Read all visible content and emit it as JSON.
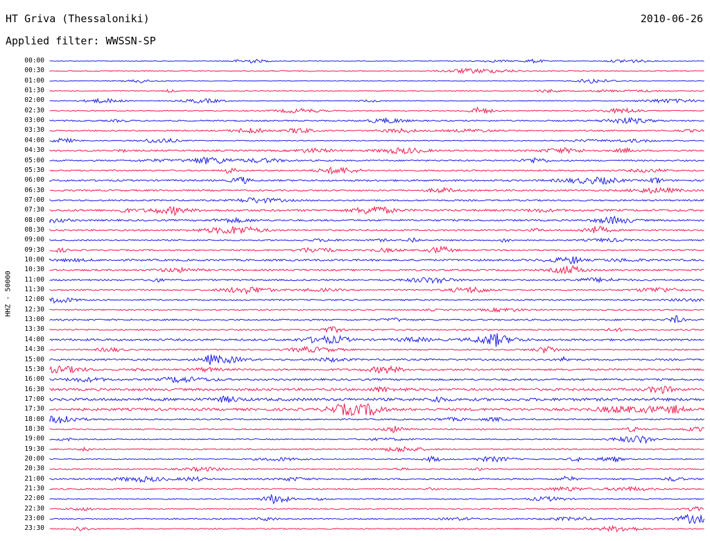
{
  "station": "HT Griva (Thessaloniki)",
  "date": "2010-06-26",
  "filter": "Applied filter: WWSSN-SP",
  "channel": "HHZ - 50000",
  "colors": {
    "even_trace": "#1a1ae6",
    "odd_trace": "#f0184f"
  },
  "chart_data": {
    "type": "line",
    "title": "HT Griva (Thessaloniki)",
    "ylabel": "HHZ - 50000",
    "xlabel": "",
    "tick_labels": [
      "00:00",
      "00:30",
      "01:00",
      "01:30",
      "02:00",
      "02:30",
      "03:00",
      "03:30",
      "04:00",
      "04:30",
      "05:00",
      "05:30",
      "06:00",
      "06:30",
      "07:00",
      "07:30",
      "08:00",
      "08:30",
      "09:00",
      "09:30",
      "10:00",
      "10:30",
      "11:00",
      "11:30",
      "12:00",
      "12:30",
      "13:00",
      "13:30",
      "14:00",
      "14:30",
      "15:00",
      "15:30",
      "16:00",
      "16:30",
      "17:00",
      "17:30",
      "18:00",
      "18:30",
      "19:00",
      "19:30",
      "20:00",
      "20:30",
      "21:00",
      "21:30",
      "22:00",
      "22:30",
      "23:00",
      "23:30"
    ],
    "series": [
      {
        "values": [
          0.4
        ]
      },
      {
        "values": [
          0.6
        ]
      },
      {
        "values": [
          0.4
        ]
      },
      {
        "values": [
          0.5
        ]
      },
      {
        "values": [
          0.5
        ]
      },
      {
        "values": [
          0.6
        ]
      },
      {
        "values": [
          0.9
        ]
      },
      {
        "values": [
          0.8
        ]
      },
      {
        "values": [
          0.6
        ]
      },
      {
        "values": [
          1.0
        ]
      },
      {
        "values": [
          0.9
        ]
      },
      {
        "values": [
          0.9
        ]
      },
      {
        "values": [
          1.1
        ]
      },
      {
        "values": [
          1.0
        ]
      },
      {
        "values": [
          1.0
        ]
      },
      {
        "values": [
          1.3
        ]
      },
      {
        "values": [
          1.1
        ]
      },
      {
        "values": [
          1.0
        ]
      },
      {
        "values": [
          0.8
        ]
      },
      {
        "values": [
          0.9
        ]
      },
      {
        "values": [
          1.2
        ]
      },
      {
        "values": [
          1.1
        ]
      },
      {
        "values": [
          1.0
        ]
      },
      {
        "values": [
          0.9
        ]
      },
      {
        "values": [
          0.9
        ]
      },
      {
        "values": [
          0.8
        ]
      },
      {
        "values": [
          1.0
        ]
      },
      {
        "values": [
          0.9
        ]
      },
      {
        "values": [
          1.3
        ]
      },
      {
        "values": [
          0.8
        ]
      },
      {
        "values": [
          1.1
        ]
      },
      {
        "values": [
          1.2
        ]
      },
      {
        "values": [
          1.2
        ]
      },
      {
        "values": [
          1.5
        ]
      },
      {
        "values": [
          1.8
        ]
      },
      {
        "values": [
          1.6
        ]
      },
      {
        "values": [
          0.9
        ]
      },
      {
        "values": [
          0.8
        ]
      },
      {
        "values": [
          0.7
        ]
      },
      {
        "values": [
          0.8
        ]
      },
      {
        "values": [
          0.7
        ]
      },
      {
        "values": [
          0.7
        ]
      },
      {
        "values": [
          1.0
        ]
      },
      {
        "values": [
          0.8
        ]
      },
      {
        "values": [
          0.7
        ]
      },
      {
        "values": [
          0.7
        ]
      },
      {
        "values": [
          0.8
        ]
      },
      {
        "values": [
          0.7
        ]
      }
    ]
  }
}
